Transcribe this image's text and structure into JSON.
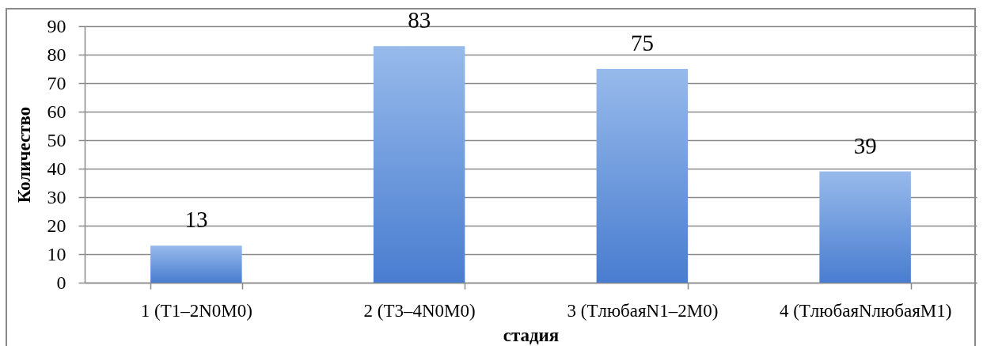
{
  "chart_data": {
    "type": "bar",
    "xlabel": "стадия",
    "ylabel": "Количество",
    "categories": [
      "1 (T1–2N0M0)",
      "2 (T3–4N0M0)",
      "3 (TлюбаяN1–2M0)",
      "4 (TлюбаяNлюбаяM1)"
    ],
    "values": [
      13,
      83,
      75,
      39
    ],
    "color": "#5f95e0",
    "ylim": [
      0,
      90
    ],
    "yticks": [
      0,
      10,
      20,
      30,
      40,
      50,
      60,
      70,
      80,
      90
    ],
    "grid": "y",
    "data_labels": true
  }
}
